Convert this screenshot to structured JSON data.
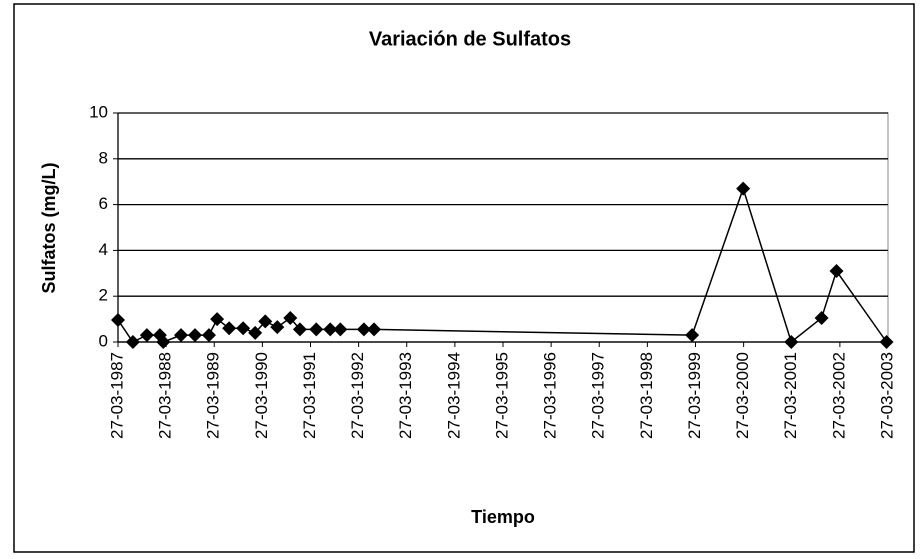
{
  "chart_data": {
    "type": "line",
    "title": "Variación de Sulfatos",
    "xlabel": "Tiempo",
    "ylabel": "Sulfatos (mg/L)",
    "x": [
      1987.23,
      1987.54,
      1987.83,
      1988.1,
      1988.17,
      1988.54,
      1988.83,
      1989.12,
      1989.29,
      1989.54,
      1989.83,
      1990.08,
      1990.29,
      1990.54,
      1990.81,
      1991.01,
      1991.35,
      1991.64,
      1991.85,
      1992.34,
      1992.55,
      1999.16,
      2000.22,
      2001.22,
      2001.85,
      2002.16,
      2003.2
    ],
    "values": [
      0.96,
      0.0,
      0.3,
      0.3,
      0.0,
      0.3,
      0.3,
      0.3,
      1.0,
      0.6,
      0.6,
      0.4,
      0.9,
      0.65,
      1.05,
      0.55,
      0.55,
      0.55,
      0.55,
      0.55,
      0.55,
      0.3,
      6.7,
      0.0,
      1.05,
      3.1,
      0.0
    ],
    "color": "#000000",
    "marker": "diamond",
    "xlim": [
      1987.23,
      2003.23
    ],
    "xticks": [
      {
        "value": 1987.23,
        "label": "27-03-1987"
      },
      {
        "value": 1988.23,
        "label": "27-03-1988"
      },
      {
        "value": 1989.23,
        "label": "27-03-1989"
      },
      {
        "value": 1990.23,
        "label": "27-03-1990"
      },
      {
        "value": 1991.23,
        "label": "27-03-1991"
      },
      {
        "value": 1992.23,
        "label": "27-03-1992"
      },
      {
        "value": 1993.23,
        "label": "27-03-1993"
      },
      {
        "value": 1994.23,
        "label": "27-03-1994"
      },
      {
        "value": 1995.23,
        "label": "27-03-1995"
      },
      {
        "value": 1996.23,
        "label": "27-03-1996"
      },
      {
        "value": 1997.23,
        "label": "27-03-1997"
      },
      {
        "value": 1998.23,
        "label": "27-03-1998"
      },
      {
        "value": 1999.23,
        "label": "27-03-1999"
      },
      {
        "value": 2000.23,
        "label": "27-03-2000"
      },
      {
        "value": 2001.23,
        "label": "27-03-2001"
      },
      {
        "value": 2002.23,
        "label": "27-03-2002"
      },
      {
        "value": 2003.23,
        "label": "27-03-2003"
      }
    ],
    "ylim": [
      0,
      10
    ],
    "yticks": [
      0,
      2,
      4,
      6,
      8,
      10
    ],
    "grid": true
  }
}
